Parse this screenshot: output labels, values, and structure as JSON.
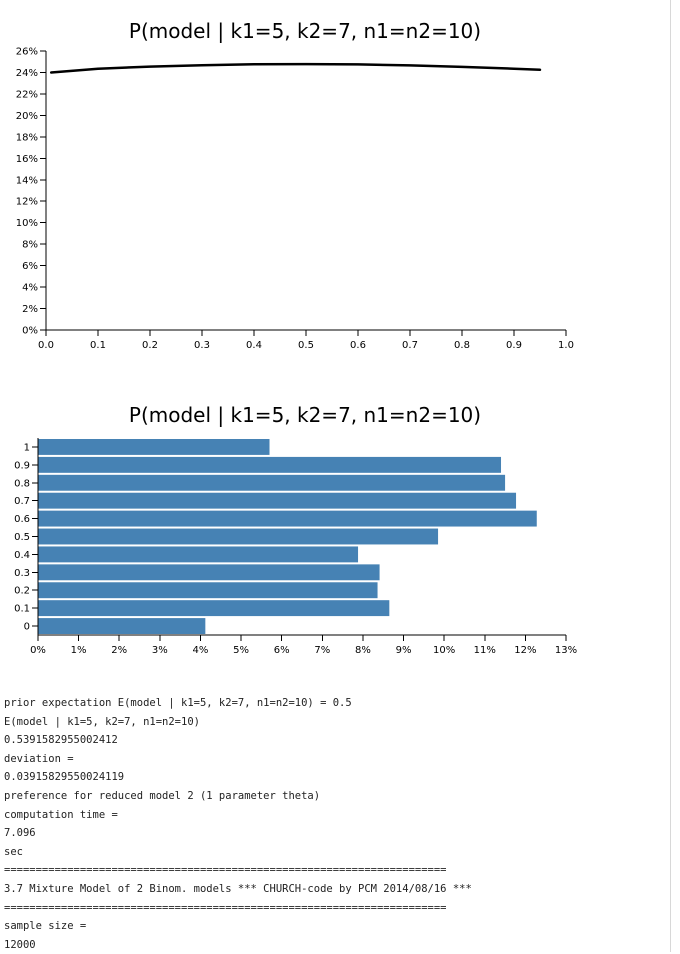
{
  "chart_data": [
    {
      "type": "line",
      "title": "P(model | k1=5, k2=7, n1=n2=10)",
      "xlabel": "",
      "ylabel": "",
      "xlim": [
        0.0,
        1.0
      ],
      "ylim": [
        0,
        0.26
      ],
      "x_ticks": [
        "0.0",
        "0.1",
        "0.2",
        "0.3",
        "0.4",
        "0.5",
        "0.6",
        "0.7",
        "0.8",
        "0.9",
        "1.0"
      ],
      "y_ticks": [
        "0%",
        "2%",
        "4%",
        "6%",
        "8%",
        "10%",
        "12%",
        "14%",
        "16%",
        "18%",
        "20%",
        "22%",
        "24%",
        "26%"
      ],
      "grid": false,
      "series": [
        {
          "color": "#000000",
          "x": [
            0.01,
            0.1,
            0.2,
            0.3,
            0.4,
            0.5,
            0.6,
            0.7,
            0.8,
            0.9,
            0.95
          ],
          "y": [
            0.24,
            0.2435,
            0.2455,
            0.2468,
            0.2476,
            0.2478,
            0.2475,
            0.2466,
            0.2452,
            0.2435,
            0.2425
          ]
        }
      ]
    },
    {
      "type": "bar",
      "orientation": "horizontal",
      "title": "P(model | k1=5, k2=7, n1=n2=10)",
      "xlabel": "",
      "ylabel": "",
      "xlim": [
        0,
        0.13
      ],
      "x_ticks": [
        "0%",
        "1%",
        "2%",
        "3%",
        "4%",
        "5%",
        "6%",
        "7%",
        "8%",
        "9%",
        "10%",
        "11%",
        "12%",
        "13%"
      ],
      "categories": [
        "1",
        "0.9",
        "0.8",
        "0.7",
        "0.6",
        "0.5",
        "0.4",
        "0.3",
        "0.2",
        "0.1",
        "0"
      ],
      "values": [
        0.057,
        0.114,
        0.115,
        0.1177,
        0.1228,
        0.0985,
        0.0788,
        0.0841,
        0.0836,
        0.0865,
        0.0412
      ],
      "bar_color": "#4682b4",
      "grid": false
    }
  ],
  "log_lines": [
    "prior expectation E(model | k1=5, k2=7, n1=n2=10) = 0.5",
    "E(model | k1=5, k2=7, n1=n2=10)",
    "0.5391582955002412",
    "deviation =",
    "0.03915829550024119",
    "preference for reduced model 2 (1 parameter theta)",
    "computation time =",
    "7.096",
    "sec",
    "======================================================================",
    "3.7 Mixture Model of 2 Binom. models *** CHURCH-code by PCM 2014/08/16 ***",
    "======================================================================",
    "sample size =",
    "12000"
  ]
}
